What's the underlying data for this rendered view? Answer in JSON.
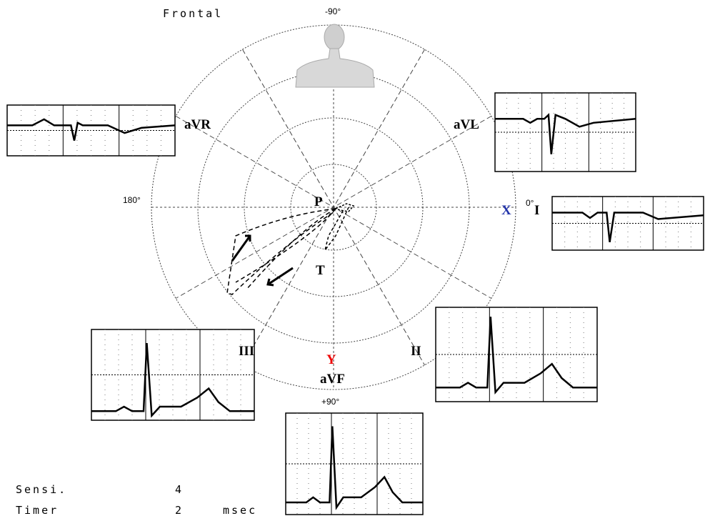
{
  "header": {
    "title": "Frontal"
  },
  "angles": {
    "top": "-90°",
    "left": "180°",
    "right": "0°",
    "bottom": "+90°"
  },
  "leads": {
    "avr": "aVR",
    "avl": "aVL",
    "i": "I",
    "ii": "II",
    "iii": "III",
    "avf": "aVF"
  },
  "axes": {
    "x": "X",
    "y": "Y"
  },
  "loops": {
    "p": "P",
    "t": "T"
  },
  "settings": [
    {
      "label": "Sensi.",
      "value": "4"
    },
    {
      "label": "Timer",
      "value": "2",
      "unit": "msec"
    }
  ]
}
